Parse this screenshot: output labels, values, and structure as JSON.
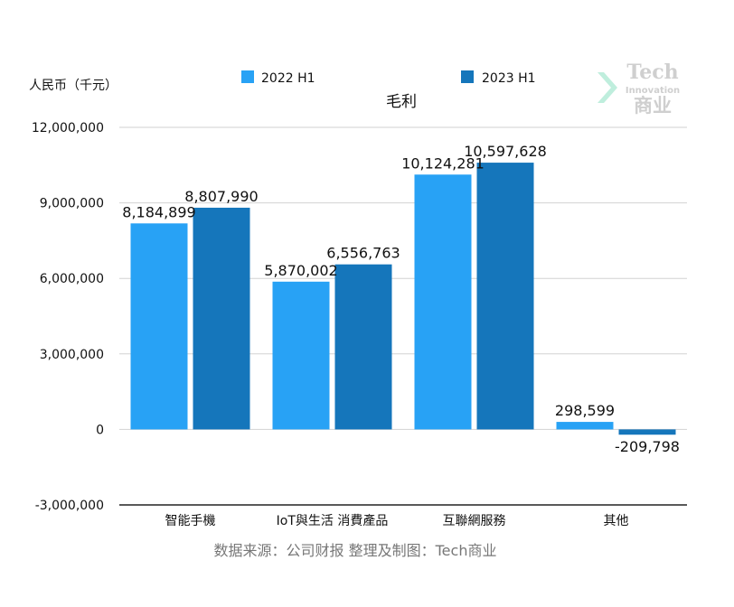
{
  "chart_data": {
    "type": "bar",
    "title": "毛利",
    "unit_label": "人民币（千元）",
    "categories": [
      "智能手機",
      "IoT與生活 消費產品",
      "互聯網服務",
      "其他"
    ],
    "series": [
      {
        "name": "2022 H1",
        "color": "#28a2f5",
        "values": [
          8184899,
          5870002,
          10124281,
          298599
        ],
        "labels": [
          "8,184,899",
          "5,870,002",
          "10,124,281",
          "298,599"
        ]
      },
      {
        "name": "2023 H1",
        "color": "#1576bb",
        "values": [
          8807990,
          6556763,
          10597628,
          -209798
        ],
        "labels": [
          "8,807,990",
          "6,556,763",
          "10,597,628",
          "-209,798"
        ]
      }
    ],
    "ylim": [
      -3000000,
      12000000
    ],
    "yticks": [
      12000000,
      9000000,
      6000000,
      3000000,
      0,
      -3000000
    ],
    "ytick_labels": [
      "12,000,000",
      "9,000,000",
      "6,000,000",
      "3,000,000",
      "0",
      "-3,000,000"
    ],
    "grid": true,
    "legend_position": "top"
  },
  "source_note": "数据来源：公司财报 整理及制图：Tech商业",
  "watermark": {
    "line1": "Tech",
    "line2": "Innovation",
    "line3": "商业",
    "color": "#cfcfcf",
    "accent": "#bfeedd"
  }
}
